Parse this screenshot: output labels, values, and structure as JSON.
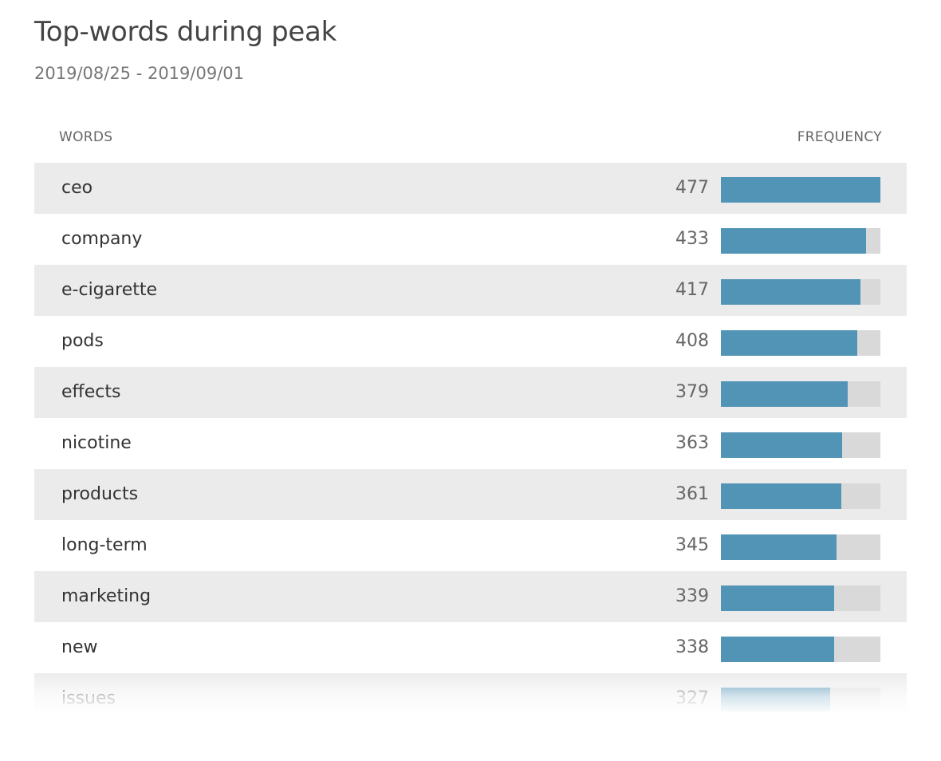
{
  "title": "Top-words during peak",
  "subtitle": "2019/08/25 - 2019/09/01",
  "headers": {
    "words": "WORDS",
    "frequency": "FREQUENCY"
  },
  "colors": {
    "bar": "#5294b5",
    "track": "#d9d9d9",
    "stripe": "#ebebeb"
  },
  "max_frequency": 477,
  "rows": [
    {
      "word": "ceo",
      "count": "477",
      "value": 477
    },
    {
      "word": "company",
      "count": "433",
      "value": 433
    },
    {
      "word": "e-cigarette",
      "count": "417",
      "value": 417
    },
    {
      "word": "pods",
      "count": "408",
      "value": 408
    },
    {
      "word": "effects",
      "count": "379",
      "value": 379
    },
    {
      "word": "nicotine",
      "count": "363",
      "value": 363
    },
    {
      "word": "products",
      "count": "361",
      "value": 361
    },
    {
      "word": "long-term",
      "count": "345",
      "value": 345
    },
    {
      "word": "marketing",
      "count": "339",
      "value": 339
    },
    {
      "word": "new",
      "count": "338",
      "value": 338
    },
    {
      "word": "issues",
      "count": "327",
      "value": 327
    }
  ]
}
